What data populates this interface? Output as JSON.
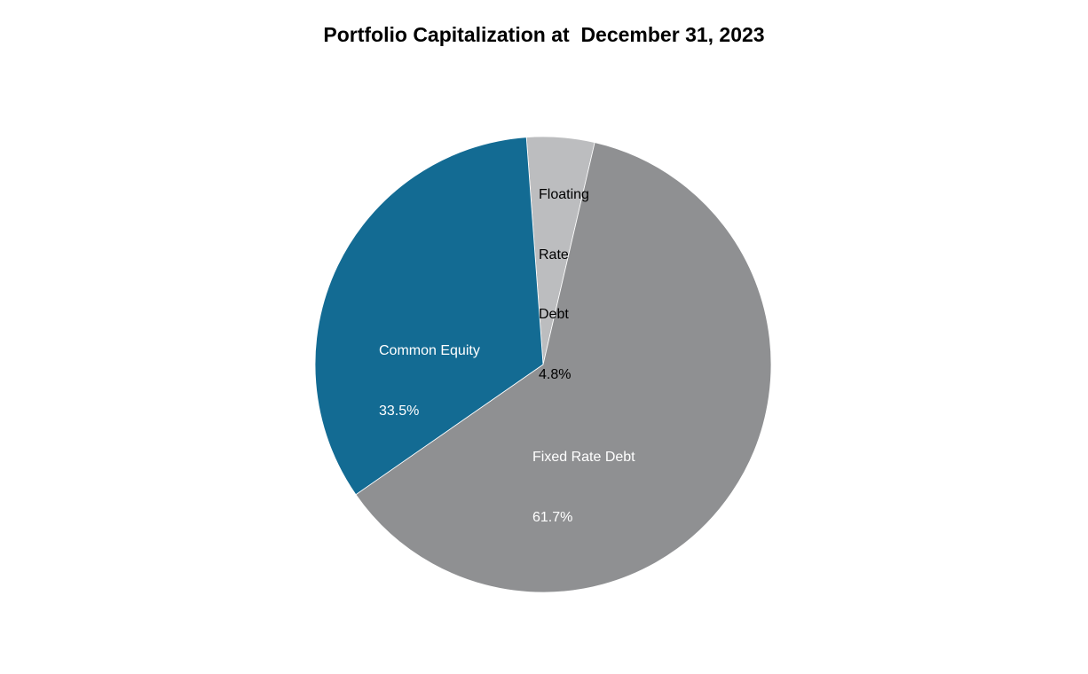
{
  "chart": {
    "title": "Portfolio Capitalization at  December 31, 2023"
  },
  "chart_data": {
    "type": "pie",
    "title": "Portfolio Capitalization at  December 31, 2023",
    "categories": [
      "Floating Rate Debt",
      "Fixed Rate Debt",
      "Common Equity"
    ],
    "values": [
      4.8,
      61.7,
      33.5
    ],
    "unit": "%",
    "colors": [
      "#bcbdbf",
      "#8f9092",
      "#136b93"
    ],
    "labels": [
      {
        "name_lines": [
          "Floating",
          "Rate",
          "Debt"
        ],
        "value": "4.8%"
      },
      {
        "name_lines": [
          "Fixed Rate Debt"
        ],
        "value": "61.7%"
      },
      {
        "name_lines": [
          "Common Equity"
        ],
        "value": "33.5%"
      }
    ],
    "legend": "none",
    "start_angle_deg": -4.2
  }
}
